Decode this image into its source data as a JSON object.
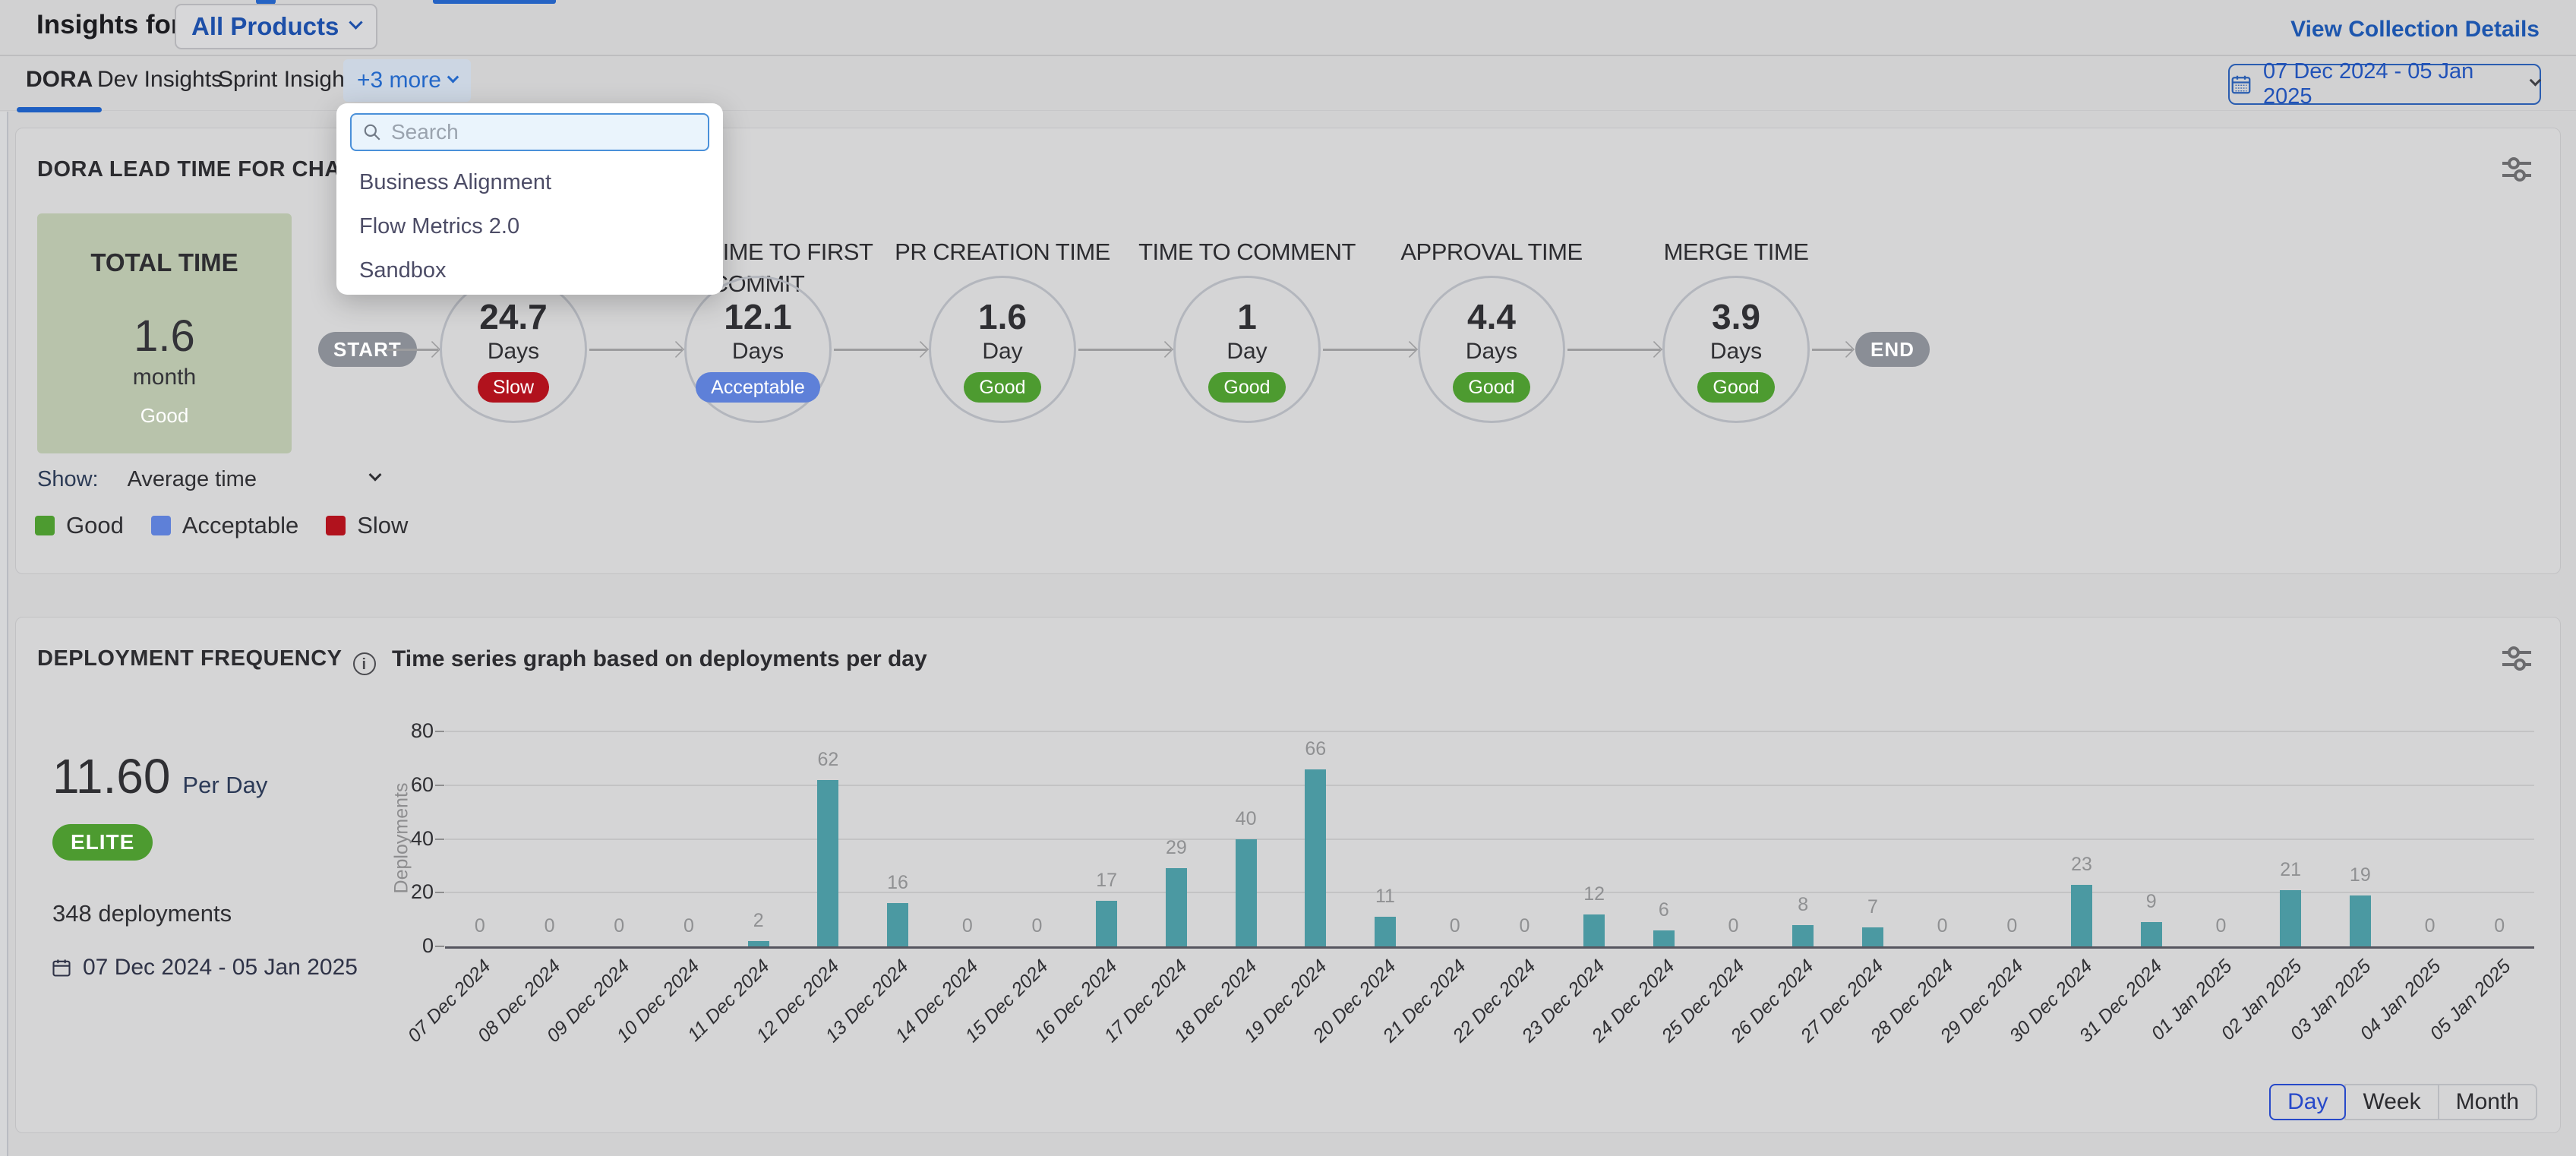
{
  "header": {
    "title": "Insights for",
    "project_selector": "All Products",
    "view_collection_details": "View Collection Details"
  },
  "tabs": {
    "items": [
      "DORA",
      "Dev Insights",
      "Sprint Insights"
    ],
    "active": "DORA",
    "more_label": "+3 more"
  },
  "more_dropdown": {
    "search_placeholder": "Search",
    "items": [
      "Business Alignment",
      "Flow Metrics 2.0",
      "Sandbox"
    ]
  },
  "date_range_picker": {
    "label": "07 Dec 2024 - 05 Jan 2025"
  },
  "lead_time_card": {
    "title": "DORA LEAD TIME FOR CHANGES REPORT",
    "total": {
      "label": "TOTAL TIME",
      "value": "1.6",
      "unit": "month",
      "status": "Good"
    },
    "start_label": "START",
    "end_label": "END",
    "stages": [
      {
        "label": "",
        "value": "24.7",
        "unit": "Days",
        "status": "Slow"
      },
      {
        "label": "LEAD TIME TO FIRST COMMIT",
        "value": "12.1",
        "unit": "Days",
        "status": "Acceptable"
      },
      {
        "label": "PR CREATION TIME",
        "value": "1.6",
        "unit": "Day",
        "status": "Good"
      },
      {
        "label": "TIME TO COMMENT",
        "value": "1",
        "unit": "Day",
        "status": "Good"
      },
      {
        "label": "APPROVAL TIME",
        "value": "4.4",
        "unit": "Days",
        "status": "Good"
      },
      {
        "label": "MERGE TIME",
        "value": "3.9",
        "unit": "Days",
        "status": "Good"
      }
    ],
    "show_label": "Show:",
    "show_value": "Average time",
    "legend": [
      {
        "label": "Good",
        "color": "#4d9b30"
      },
      {
        "label": "Acceptable",
        "color": "#5e80d8"
      },
      {
        "label": "Slow",
        "color": "#b1121d"
      }
    ],
    "status_colors": {
      "Good": "#4d9b30",
      "Acceptable": "#5e80d8",
      "Slow": "#b1121d"
    }
  },
  "deployment_card": {
    "title": "DEPLOYMENT FREQUENCY",
    "info_icon": "i",
    "rate_value": "11.60",
    "rate_unit": "Per Day",
    "badge": "ELITE",
    "badge_color": "#4d9b30",
    "total_deployments": "348 deployments",
    "date_range": "07 Dec 2024 - 05 Jan 2025",
    "granularity": [
      "Day",
      "Week",
      "Month"
    ],
    "granularity_active": "Day"
  },
  "chart_data": {
    "type": "bar",
    "title": "Time series graph based on deployments per day",
    "xlabel": "",
    "ylabel": "Deployments",
    "ylim": [
      0,
      80
    ],
    "yticks": [
      0,
      20,
      40,
      60,
      80
    ],
    "grid": true,
    "legend_position": "none",
    "bar_color": "#4b99a2",
    "categories": [
      "07 Dec 2024",
      "08 Dec 2024",
      "09 Dec 2024",
      "10 Dec 2024",
      "11 Dec 2024",
      "12 Dec 2024",
      "13 Dec 2024",
      "14 Dec 2024",
      "15 Dec 2024",
      "16 Dec 2024",
      "17 Dec 2024",
      "18 Dec 2024",
      "19 Dec 2024",
      "20 Dec 2024",
      "21 Dec 2024",
      "22 Dec 2024",
      "23 Dec 2024",
      "24 Dec 2024",
      "25 Dec 2024",
      "26 Dec 2024",
      "27 Dec 2024",
      "28 Dec 2024",
      "29 Dec 2024",
      "30 Dec 2024",
      "31 Dec 2024",
      "01 Jan 2025",
      "02 Jan 2025",
      "03 Jan 2025",
      "04 Jan 2025",
      "05 Jan 2025"
    ],
    "values": [
      0,
      0,
      0,
      0,
      2,
      62,
      16,
      0,
      0,
      17,
      29,
      40,
      66,
      11,
      0,
      0,
      12,
      6,
      0,
      8,
      7,
      0,
      0,
      23,
      9,
      0,
      21,
      19,
      0,
      0
    ]
  }
}
